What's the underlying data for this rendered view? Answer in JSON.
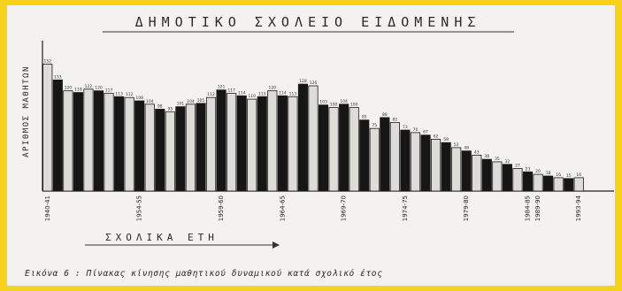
{
  "chart_data": {
    "type": "bar",
    "title": "ΔΗΜΟΤΙΚΟ ΣΧΟΛΕΙΟ ΕΙΔΟΜΕΝΗΣ",
    "ylabel": "ΑΡΙΘΜΟΣ ΜΑΘΗΤΩΝ",
    "xlabel": "ΣΧΟΛΙΚΑ ΕΤΗ",
    "caption": "Εικόνα 6 : Πίνακας κίνησης μαθητικού δυναμικού κατά σχολικό έτος",
    "ylim": [
      0,
      180
    ],
    "grid": false,
    "legend": "none",
    "bar_colors": [
      "#dedcd8",
      "#161616"
    ],
    "x_tick_labels": [
      "1940-41",
      "1954-55",
      "1959-60",
      "1964-65",
      "1969-70",
      "1974-75",
      "1979-80",
      "1984-85",
      "1989-90",
      "1993-94"
    ],
    "values": [
      152,
      133,
      120,
      118,
      122,
      120,
      117,
      113,
      112,
      108,
      104,
      98,
      95,
      101,
      104,
      105,
      112,
      121,
      117,
      114,
      110,
      113,
      120,
      114,
      113,
      128,
      126,
      103,
      100,
      104,
      100,
      85,
      75,
      88,
      82,
      73,
      70,
      67,
      62,
      58,
      52,
      48,
      43,
      38,
      35,
      32,
      27,
      23,
      20,
      18,
      16,
      15,
      16
    ]
  }
}
